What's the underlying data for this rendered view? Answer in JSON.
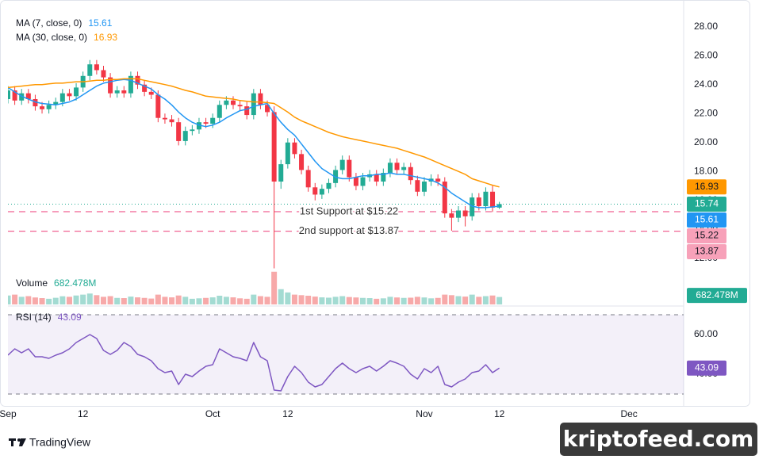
{
  "chart_data": [
    {
      "type": "candlestick",
      "x": [
        "09-01",
        "09-02",
        "09-03",
        "09-04",
        "09-05",
        "09-06",
        "09-07",
        "09-08",
        "09-09",
        "09-10",
        "09-11",
        "09-12",
        "09-13",
        "09-14",
        "09-15",
        "09-16",
        "09-17",
        "09-18",
        "09-19",
        "09-20",
        "09-21",
        "09-22",
        "09-23",
        "09-24",
        "09-25",
        "09-26",
        "09-27",
        "09-28",
        "09-29",
        "09-30",
        "10-01",
        "10-02",
        "10-03",
        "10-04",
        "10-05",
        "10-06",
        "10-07",
        "10-08",
        "10-09",
        "10-10",
        "10-11",
        "10-12",
        "10-13",
        "10-14",
        "10-15",
        "10-16",
        "10-17",
        "10-18",
        "10-19",
        "10-20",
        "10-21",
        "10-22",
        "10-23",
        "10-24",
        "10-25",
        "10-26",
        "10-27",
        "10-28",
        "10-29",
        "10-30",
        "10-31",
        "11-01",
        "11-02",
        "11-03",
        "11-04",
        "11-05",
        "11-06",
        "11-07",
        "11-08",
        "11-09",
        "11-10",
        "11-11",
        "11-12"
      ],
      "xlim": [
        "09-01",
        "12-09"
      ],
      "xticks": [
        {
          "value": "09-01",
          "label": "Sep"
        },
        {
          "value": "09-12",
          "label": "12"
        },
        {
          "value": "10-01",
          "label": "Oct"
        },
        {
          "value": "10-12",
          "label": "12"
        },
        {
          "value": "11-01",
          "label": "Nov"
        },
        {
          "value": "11-12",
          "label": "12"
        },
        {
          "value": "12-01",
          "label": "Dec"
        }
      ],
      "ylim": [
        11,
        29.3
      ],
      "yticks": [
        {
          "value": 12,
          "label": "12.00"
        },
        {
          "value": 14,
          "label": "14.00"
        },
        {
          "value": 16,
          "label": "16.00"
        },
        {
          "value": 18,
          "label": "18.00"
        },
        {
          "value": 20,
          "label": "20.00"
        },
        {
          "value": 22,
          "label": "22.00"
        },
        {
          "value": 24,
          "label": "24.00"
        },
        {
          "value": 26,
          "label": "26.00"
        },
        {
          "value": 28,
          "label": "28.00"
        }
      ],
      "open": [
        23.0,
        23.6,
        22.9,
        23.4,
        23.0,
        22.5,
        22.3,
        22.6,
        22.8,
        23.4,
        23.2,
        23.8,
        24.6,
        25.4,
        25.0,
        24.5,
        23.4,
        23.6,
        23.4,
        24.6,
        24.0,
        23.5,
        23.3,
        21.7,
        21.6,
        21.4,
        20.1,
        20.8,
        20.9,
        21.4,
        21.3,
        21.7,
        22.6,
        22.9,
        22.6,
        22.5,
        21.9,
        23.4,
        22.6,
        22.1,
        17.3,
        18.5,
        20.0,
        19.2,
        18.1,
        16.9,
        16.4,
        16.8,
        17.2,
        18.1,
        18.8,
        17.6,
        17.0,
        17.6,
        17.8,
        17.3,
        17.9,
        18.6,
        18.1,
        18.3,
        17.4,
        16.6,
        17.3,
        17.5,
        17.3,
        15.1,
        14.8,
        15.3,
        14.9,
        16.2,
        15.6,
        16.6,
        15.5
      ],
      "high": [
        23.9,
        23.9,
        23.7,
        23.7,
        23.3,
        22.8,
        22.9,
        23.1,
        23.7,
        23.7,
        24.1,
        24.9,
        25.7,
        25.7,
        25.3,
        24.8,
        23.9,
        23.9,
        24.9,
        24.9,
        24.3,
        23.8,
        23.6,
        22.0,
        21.9,
        21.7,
        21.1,
        21.2,
        21.7,
        21.7,
        22.0,
        22.9,
        23.2,
        23.2,
        22.9,
        22.8,
        23.7,
        23.7,
        22.9,
        22.5,
        18.8,
        20.3,
        20.3,
        19.5,
        18.4,
        17.2,
        17.1,
        17.5,
        18.4,
        19.1,
        19.1,
        17.9,
        17.9,
        18.1,
        18.1,
        18.2,
        18.9,
        18.9,
        18.6,
        18.6,
        17.7,
        17.6,
        17.8,
        17.8,
        17.6,
        15.4,
        15.6,
        15.6,
        16.5,
        16.5,
        16.9,
        17.0,
        15.9
      ],
      "low": [
        22.7,
        22.6,
        22.6,
        22.7,
        22.2,
        22.0,
        22.0,
        22.3,
        22.5,
        22.9,
        22.9,
        23.5,
        24.3,
        24.7,
        24.2,
        23.1,
        23.1,
        23.1,
        23.1,
        23.7,
        23.2,
        23.0,
        21.4,
        21.3,
        21.1,
        19.8,
        19.8,
        20.5,
        20.6,
        21.0,
        21.0,
        21.4,
        22.3,
        22.3,
        22.2,
        21.6,
        21.6,
        22.3,
        21.8,
        11.3,
        16.8,
        18.2,
        18.9,
        17.8,
        16.6,
        16.0,
        16.1,
        16.5,
        16.9,
        17.8,
        17.3,
        16.7,
        16.7,
        17.3,
        17.0,
        17.0,
        17.6,
        17.8,
        17.8,
        17.1,
        16.3,
        16.3,
        17.0,
        17.0,
        14.8,
        13.9,
        14.5,
        14.2,
        14.6,
        15.3,
        15.3,
        15.2,
        15.4
      ],
      "close": [
        23.6,
        22.9,
        23.4,
        23.0,
        22.5,
        22.3,
        22.6,
        22.8,
        23.4,
        23.2,
        23.8,
        24.6,
        25.4,
        25.0,
        24.5,
        23.4,
        23.6,
        23.4,
        24.6,
        24.0,
        23.5,
        23.3,
        21.7,
        21.6,
        21.4,
        20.1,
        20.8,
        20.9,
        21.4,
        21.3,
        21.7,
        22.6,
        22.9,
        22.6,
        22.5,
        21.9,
        23.4,
        22.6,
        22.1,
        17.3,
        18.5,
        20.0,
        19.2,
        18.1,
        16.9,
        16.4,
        16.8,
        17.2,
        18.1,
        18.8,
        17.6,
        17.0,
        17.6,
        17.8,
        17.3,
        17.9,
        18.6,
        18.1,
        18.3,
        17.4,
        16.6,
        17.3,
        17.5,
        17.3,
        15.1,
        14.8,
        15.3,
        14.9,
        16.2,
        15.6,
        16.6,
        15.5,
        15.74
      ],
      "up_color": "#22ab94",
      "down_color": "#f23645",
      "series": [
        {
          "name": "MA (7, close, 0)",
          "color": "#2196f3",
          "values": [
            23.8,
            23.5,
            23.2,
            23.0,
            22.8,
            22.7,
            22.65,
            22.6,
            22.7,
            22.8,
            23.0,
            23.3,
            23.6,
            23.9,
            24.1,
            24.2,
            24.3,
            24.35,
            24.3,
            24.1,
            23.9,
            23.7,
            23.3,
            23.0,
            22.6,
            22.1,
            21.7,
            21.4,
            21.2,
            21.1,
            21.2,
            21.4,
            21.7,
            21.95,
            22.2,
            22.3,
            22.5,
            22.6,
            22.7,
            22.0,
            21.4,
            20.9,
            20.5,
            19.9,
            19.3,
            18.7,
            18.2,
            17.9,
            17.6,
            17.5,
            17.5,
            17.6,
            17.7,
            17.7,
            17.8,
            17.8,
            17.9,
            17.8,
            17.8,
            17.7,
            17.6,
            17.5,
            17.4,
            17.2,
            16.9,
            16.5,
            16.2,
            15.9,
            15.6,
            15.5,
            15.5,
            15.55,
            15.61
          ]
        },
        {
          "name": "MA (30, close, 0)",
          "color": "#ff9800",
          "values": [
            23.8,
            23.85,
            23.9,
            23.95,
            24.0,
            24.0,
            24.05,
            24.1,
            24.1,
            24.15,
            24.2,
            24.2,
            24.25,
            24.3,
            24.3,
            24.35,
            24.35,
            24.4,
            24.4,
            24.4,
            24.3,
            24.2,
            24.1,
            24.0,
            23.9,
            23.75,
            23.6,
            23.5,
            23.35,
            23.2,
            23.15,
            23.1,
            23.05,
            23.0,
            22.9,
            22.85,
            22.8,
            22.8,
            22.75,
            22.7,
            22.4,
            22.1,
            21.75,
            21.5,
            21.3,
            21.1,
            20.9,
            20.7,
            20.55,
            20.4,
            20.3,
            20.2,
            20.1,
            20.0,
            19.9,
            19.8,
            19.7,
            19.6,
            19.45,
            19.3,
            19.15,
            19.0,
            18.8,
            18.6,
            18.4,
            18.2,
            18.0,
            17.8,
            17.5,
            17.35,
            17.2,
            17.05,
            16.93
          ]
        }
      ],
      "hlines": [
        {
          "value": 15.22,
          "label": "1st Support at $15.22",
          "color": "#f06292"
        },
        {
          "value": 13.87,
          "label": "2nd support at $13.87",
          "color": "#f06292"
        }
      ]
    },
    {
      "type": "bar",
      "title": "Volume",
      "values": [
        820,
        900,
        700,
        760,
        640,
        580,
        520,
        610,
        750,
        700,
        820,
        900,
        1000,
        850,
        700,
        760,
        600,
        580,
        720,
        650,
        600,
        540,
        900,
        700,
        650,
        820,
        700,
        520,
        560,
        600,
        650,
        800,
        700,
        650,
        560,
        520,
        900,
        760,
        700,
        3000,
        1400,
        1100,
        900,
        850,
        800,
        720,
        650,
        620,
        700,
        760,
        680,
        640,
        600,
        580,
        520,
        560,
        700,
        640,
        600,
        620,
        700,
        640,
        560,
        600,
        900,
        850,
        760,
        720,
        900,
        700,
        760,
        820,
        682.478
      ],
      "value_labels": [
        null,
        null,
        null,
        null,
        null,
        null,
        null,
        null,
        null,
        null,
        null,
        null,
        null,
        null,
        null,
        null,
        null,
        null,
        null,
        null,
        null,
        null,
        null,
        null,
        null,
        null,
        null,
        null,
        null,
        null,
        null,
        null,
        null,
        null,
        null,
        null,
        null,
        null,
        null,
        null,
        null,
        null,
        null,
        null,
        null,
        null,
        null,
        null,
        null,
        null,
        null,
        null,
        null,
        null,
        null,
        null,
        null,
        null,
        null,
        null,
        null,
        null,
        null,
        null,
        null,
        null,
        null,
        null,
        null,
        null,
        null,
        null,
        "682.478M"
      ],
      "ylim": [
        0,
        3200
      ],
      "up_color": "#a3dbd2",
      "down_color": "#f7a9a9",
      "label_color": "#22ab94"
    },
    {
      "type": "line",
      "title": "RSI (14)",
      "values": [
        49.6,
        52.8,
        50.8,
        52.8,
        48.8,
        48.8,
        48,
        49.6,
        50.8,
        52.8,
        56,
        58,
        60,
        58,
        52,
        50,
        52,
        56,
        54,
        50,
        48.8,
        46.8,
        42.8,
        40.8,
        41.6,
        34.8,
        40,
        38.8,
        41.6,
        44,
        44.8,
        52.8,
        50.8,
        48.8,
        48,
        46.8,
        56,
        48.8,
        46.8,
        32,
        31.6,
        38.8,
        44,
        40.8,
        36,
        33.6,
        34.8,
        38.8,
        42.8,
        45.6,
        42.8,
        40.8,
        42.8,
        44,
        41.6,
        44,
        46.8,
        45.6,
        44,
        40,
        37.6,
        42.8,
        40.8,
        44,
        34.8,
        33.6,
        36,
        37.6,
        40.8,
        41.6,
        44.8,
        40.8,
        43.09
      ],
      "color": "#7e57c2",
      "ylim": [
        24,
        73.6
      ],
      "yticks": [
        {
          "value": 40,
          "label": "40.00"
        },
        {
          "value": 60,
          "label": "60.00"
        }
      ],
      "bands": [
        30,
        70
      ]
    }
  ],
  "branding": {
    "logo": "TradingView",
    "watermark": "kriptofeed.com"
  }
}
